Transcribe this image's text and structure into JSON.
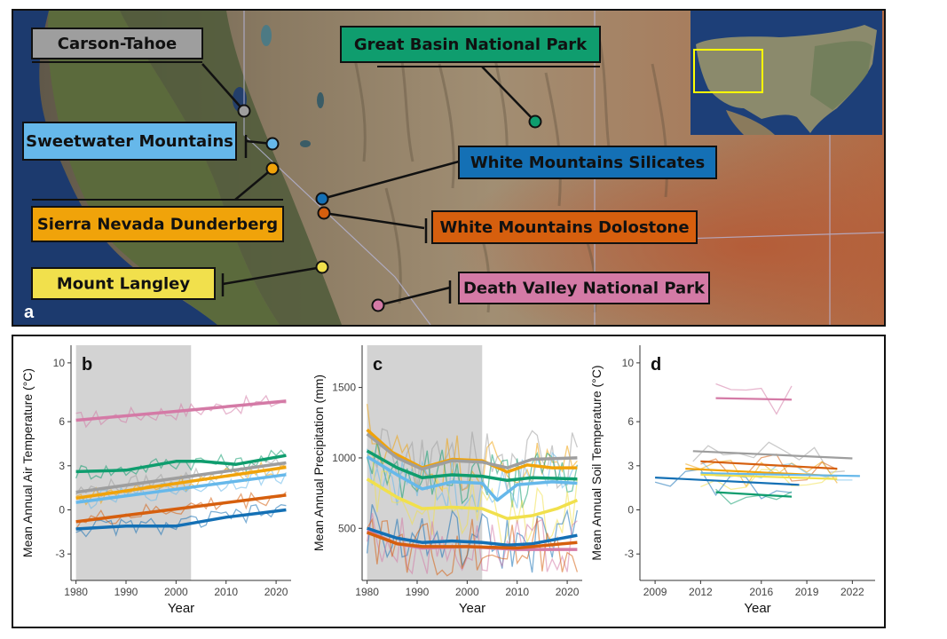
{
  "map": {
    "panel_letter": "a",
    "sites": [
      {
        "id": "carson",
        "label": "Carson-Tahoe",
        "color": "#9e9e9e"
      },
      {
        "id": "greatbasin",
        "label": "Great Basin National Park",
        "color": "#0f9d6e"
      },
      {
        "id": "sweetwater",
        "label": "Sweetwater Mountains",
        "color": "#66b8ea"
      },
      {
        "id": "wmsilicates",
        "label": "White Mountains Silicates",
        "color": "#1470b5"
      },
      {
        "id": "sierra",
        "label": "Sierra Nevada Dunderberg",
        "color": "#f0a30a"
      },
      {
        "id": "wmdolostone",
        "label": "White Mountains Dolostone",
        "color": "#d65f0e"
      },
      {
        "id": "langley",
        "label": "Mount Langley",
        "color": "#f1e04c"
      },
      {
        "id": "deathvalley",
        "label": "Death Valley National Park",
        "color": "#d47aa6"
      }
    ],
    "inset_highlight_color": "#ffff00"
  },
  "chart_data": [
    {
      "panel": "b",
      "type": "line",
      "xlabel": "Year",
      "ylabel": "Mean Annual Air Temperature (°C)",
      "xlim": [
        1979,
        2023
      ],
      "ylim": [
        -4.8,
        11.2
      ],
      "xticks": [
        1980,
        1990,
        2000,
        2010,
        2020
      ],
      "yticks": [
        -3,
        0,
        3,
        6,
        10
      ],
      "shaded_period": [
        1980,
        2003
      ],
      "series": [
        {
          "site": "deathvalley",
          "color": "#d47aa6",
          "trend": [
            [
              1980,
              6.1
            ],
            [
              2000,
              6.7
            ],
            [
              2022,
              7.4
            ]
          ]
        },
        {
          "site": "greatbasin",
          "color": "#0f9d6e",
          "trend": [
            [
              1980,
              2.6
            ],
            [
              1990,
              2.7
            ],
            [
              2000,
              3.3
            ],
            [
              2005,
              3.3
            ],
            [
              2012,
              3.1
            ],
            [
              2022,
              3.7
            ]
          ]
        },
        {
          "site": "carson",
          "color": "#9e9e9e",
          "trend": [
            [
              1980,
              1.2
            ],
            [
              2022,
              3.2
            ]
          ]
        },
        {
          "site": "sierra",
          "color": "#f0a30a",
          "trend": [
            [
              1980,
              0.8
            ],
            [
              2022,
              2.9
            ]
          ]
        },
        {
          "site": "sweetwater",
          "color": "#66b8ea",
          "trend": [
            [
              1980,
              0.5
            ],
            [
              2022,
              2.4
            ]
          ]
        },
        {
          "site": "wmdolostone",
          "color": "#d65f0e",
          "trend": [
            [
              1980,
              -0.8
            ],
            [
              2022,
              1.0
            ]
          ]
        },
        {
          "site": "wmsilicates",
          "color": "#1470b5",
          "trend": [
            [
              1980,
              -1.3
            ],
            [
              1990,
              -1.1
            ],
            [
              2000,
              -1.1
            ],
            [
              2010,
              -0.5
            ],
            [
              2022,
              0.0
            ]
          ]
        }
      ]
    },
    {
      "panel": "c",
      "type": "line",
      "xlabel": "Year",
      "ylabel": "Mean Annual Precipitation (mm)",
      "xlim": [
        1979,
        2023
      ],
      "ylim": [
        130,
        1800
      ],
      "xticks": [
        1980,
        1990,
        2000,
        2010,
        2020
      ],
      "yticks": [
        500,
        1000,
        1500
      ],
      "shaded_period": [
        1980,
        2003
      ],
      "series": [
        {
          "site": "sierra",
          "color": "#f0a30a",
          "trend": [
            [
              1980,
              1200
            ],
            [
              1985,
              1040
            ],
            [
              1991,
              930
            ],
            [
              1997,
              990
            ],
            [
              2003,
              980
            ],
            [
              2008,
              900
            ],
            [
              2012,
              950
            ],
            [
              2017,
              930
            ],
            [
              2022,
              930
            ]
          ]
        },
        {
          "site": "carson",
          "color": "#9e9e9e",
          "trend": [
            [
              1980,
              1170
            ],
            [
              1986,
              1000
            ],
            [
              1991,
              920
            ],
            [
              1997,
              980
            ],
            [
              2003,
              970
            ],
            [
              2008,
              930
            ],
            [
              2013,
              990
            ],
            [
              2022,
              1000
            ]
          ]
        },
        {
          "site": "greatbasin",
          "color": "#0f9d6e",
          "trend": [
            [
              1980,
              1050
            ],
            [
              1986,
              930
            ],
            [
              1991,
              860
            ],
            [
              1997,
              880
            ],
            [
              2003,
              870
            ],
            [
              2008,
              840
            ],
            [
              2013,
              860
            ],
            [
              2022,
              850
            ]
          ]
        },
        {
          "site": "sweetwater",
          "color": "#66b8ea",
          "trend": [
            [
              1980,
              1010
            ],
            [
              1986,
              880
            ],
            [
              1991,
              780
            ],
            [
              1997,
              830
            ],
            [
              2003,
              820
            ],
            [
              2006,
              700
            ],
            [
              2010,
              810
            ],
            [
              2017,
              830
            ],
            [
              2022,
              820
            ]
          ]
        },
        {
          "site": "langley",
          "color": "#f1e04c",
          "trend": [
            [
              1980,
              850
            ],
            [
              1986,
              720
            ],
            [
              1991,
              640
            ],
            [
              1997,
              650
            ],
            [
              2003,
              640
            ],
            [
              2008,
              570
            ],
            [
              2013,
              590
            ],
            [
              2018,
              640
            ],
            [
              2022,
              700
            ]
          ]
        },
        {
          "site": "wmsilicates",
          "color": "#1470b5",
          "trend": [
            [
              1980,
              500
            ],
            [
              1986,
              430
            ],
            [
              1991,
              400
            ],
            [
              1997,
              410
            ],
            [
              2003,
              400
            ],
            [
              2008,
              380
            ],
            [
              2013,
              390
            ],
            [
              2022,
              450
            ]
          ]
        },
        {
          "site": "deathvalley",
          "color": "#d47aa6",
          "trend": [
            [
              1980,
              480
            ],
            [
              1986,
              390
            ],
            [
              1991,
              360
            ],
            [
              2000,
              370
            ],
            [
              2010,
              350
            ],
            [
              2022,
              350
            ]
          ]
        },
        {
          "site": "wmdolostone",
          "color": "#d65f0e",
          "trend": [
            [
              1980,
              470
            ],
            [
              1986,
              390
            ],
            [
              1991,
              370
            ],
            [
              2000,
              370
            ],
            [
              2010,
              360
            ],
            [
              2022,
              400
            ]
          ]
        }
      ]
    },
    {
      "panel": "d",
      "type": "line",
      "xlabel": "Year",
      "ylabel": "Mean Annual Soil Temperature (°C)",
      "xlim": [
        2008,
        2023.5
      ],
      "ylim": [
        -4.8,
        11.2
      ],
      "xticks": [
        2009,
        2012,
        2016,
        2019,
        2022
      ],
      "yticks": [
        -3,
        0,
        3,
        6,
        10
      ],
      "series": [
        {
          "site": "deathvalley",
          "color": "#d47aa6",
          "trend": [
            [
              2013,
              7.6
            ],
            [
              2018,
              7.5
            ]
          ]
        },
        {
          "site": "carson",
          "color": "#9e9e9e",
          "trend": [
            [
              2011.5,
              4.0
            ],
            [
              2022,
              3.5
            ]
          ]
        },
        {
          "site": "wmdolostone",
          "color": "#d65f0e",
          "trend": [
            [
              2012,
              3.3
            ],
            [
              2021,
              2.8
            ]
          ]
        },
        {
          "site": "sierra",
          "color": "#f0a30a",
          "trend": [
            [
              2011,
              2.8
            ],
            [
              2021,
              2.3
            ]
          ]
        },
        {
          "site": "sweetwater",
          "color": "#66b8ea",
          "trend": [
            [
              2012,
              2.5
            ],
            [
              2022.5,
              2.3
            ]
          ]
        },
        {
          "site": "langley",
          "color": "#f1e04c",
          "trend": [
            [
              2012,
              2.4
            ],
            [
              2021,
              2.1
            ]
          ]
        },
        {
          "site": "wmsilicates",
          "color": "#1470b5",
          "trend": [
            [
              2009,
              2.2
            ],
            [
              2018.5,
              1.7
            ]
          ]
        },
        {
          "site": "greatbasin",
          "color": "#0f9d6e",
          "trend": [
            [
              2013,
              1.2
            ],
            [
              2018,
              0.9
            ]
          ]
        }
      ]
    }
  ]
}
